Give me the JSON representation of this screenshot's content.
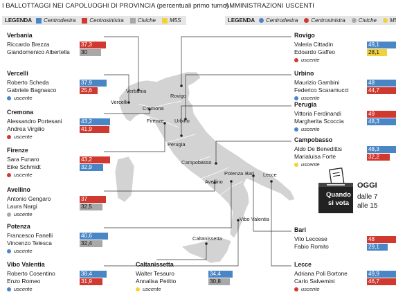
{
  "header": {
    "left_title": "I BALLOTTAGGI NEI CAPOLUOGHI DI PROVINCIA",
    "left_subtitle": "(percentuali primo turno)",
    "right_title": "AMMINISTRAZIONI USCENTI"
  },
  "legend_left": {
    "key": "LEGENDA",
    "items": [
      "Centrodestra",
      "Centrosinistra",
      "Civiche",
      "M5S"
    ]
  },
  "legend_right": {
    "key": "LEGENDA",
    "items": [
      "Centrodestra",
      "Centrosinistra",
      "Civiche",
      "M5S"
    ]
  },
  "colors": {
    "centrodestra": "#4a86c5",
    "centrosinistra": "#d0392f",
    "civiche": "#a8a8a8",
    "m5s": "#f2d23c",
    "map": "#d3d3d3"
  },
  "status_word": "uscente",
  "map_labels": [
    "Verbania",
    "Vercelli",
    "Rovigo",
    "Cremona",
    "Firenze",
    "Urbino",
    "Perugia",
    "Campobasso",
    "Potenza",
    "Bari",
    "Lecce",
    "Avellino",
    "Vibo Valentia",
    "Caltanissetta"
  ],
  "ballot_box": {
    "line1": "Quando",
    "line2": "si vota"
  },
  "schedule": {
    "oggi": "OGGI",
    "line1": "dalle 7",
    "line2": "alle 15"
  },
  "chart_data": {
    "type": "bar",
    "xlim": [
      0,
      50
    ],
    "cities": [
      {
        "name": "Verbania",
        "candidates": [
          {
            "name": "Riccardo Brezza",
            "value": 37.3,
            "party": "centrosinistra"
          },
          {
            "name": "Giandomenico Albertella",
            "value": 30,
            "party": "civiche"
          }
        ],
        "outgoing": null
      },
      {
        "name": "Vercelli",
        "candidates": [
          {
            "name": "Roberto Scheda",
            "value": 37.9,
            "party": "centrodestra"
          },
          {
            "name": "Gabriele Bagnasco",
            "value": 25.6,
            "party": "centrosinistra"
          }
        ],
        "outgoing": "centrodestra"
      },
      {
        "name": "Cremona",
        "candidates": [
          {
            "name": "Alessandro Portesani",
            "value": 43.2,
            "party": "centrodestra"
          },
          {
            "name": "Andrea Virgilio",
            "value": 41.9,
            "party": "centrosinistra"
          }
        ],
        "outgoing": "centrosinistra"
      },
      {
        "name": "Firenze",
        "candidates": [
          {
            "name": "Sara Funaro",
            "value": 43.2,
            "party": "centrosinistra"
          },
          {
            "name": "Eike Schmidt",
            "value": 32.9,
            "party": "centrodestra"
          }
        ],
        "outgoing": "centrosinistra"
      },
      {
        "name": "Avellino",
        "candidates": [
          {
            "name": "Antonio Gengaro",
            "value": 37,
            "party": "centrosinistra"
          },
          {
            "name": "Laura Nargi",
            "value": 32.5,
            "party": "civiche"
          }
        ],
        "outgoing": "civiche"
      },
      {
        "name": "Potenza",
        "candidates": [
          {
            "name": "Francesco Fanelli",
            "value": 40.6,
            "party": "centrodestra"
          },
          {
            "name": "Vincenzo Telesca",
            "value": 32.4,
            "party": "civiche"
          }
        ],
        "outgoing": "centrodestra"
      },
      {
        "name": "Vibo Valentia",
        "candidates": [
          {
            "name": "Roberto Cosentino",
            "value": 38.4,
            "party": "centrodestra"
          },
          {
            "name": "Enzo Romeo",
            "value": 31.9,
            "party": "centrosinistra"
          }
        ],
        "outgoing": "centrodestra"
      },
      {
        "name": "Caltanissetta",
        "candidates": [
          {
            "name": "Walter Tesauro",
            "value": 34.4,
            "party": "centrodestra"
          },
          {
            "name": "Annalisa Petitto",
            "value": 30.8,
            "party": "civiche"
          }
        ],
        "outgoing": "m5s"
      },
      {
        "name": "Rovigo",
        "candidates": [
          {
            "name": "Valeria Cittadin",
            "value": 49.1,
            "party": "centrodestra"
          },
          {
            "name": "Edoardo Gaffeo",
            "value": 28.1,
            "party": "m5s"
          }
        ],
        "outgoing": "centrosinistra"
      },
      {
        "name": "Urbino",
        "candidates": [
          {
            "name": "Maurizio Gambini",
            "value": 48,
            "party": "centrodestra"
          },
          {
            "name": "Federico Scaramucci",
            "value": 44.7,
            "party": "centrosinistra"
          }
        ],
        "outgoing": "centrodestra"
      },
      {
        "name": "Perugia",
        "candidates": [
          {
            "name": "Vittoria Ferdinandi",
            "value": 49,
            "party": "centrosinistra"
          },
          {
            "name": "Margherita Scoccia",
            "value": 48.3,
            "party": "centrodestra"
          }
        ],
        "outgoing": "centrodestra"
      },
      {
        "name": "Campobasso",
        "candidates": [
          {
            "name": "Aldo De Benedittis",
            "value": 48.3,
            "party": "centrodestra"
          },
          {
            "name": "Marialuisa Forte",
            "value": 32.2,
            "party": "centrosinistra"
          }
        ],
        "outgoing": "m5s"
      },
      {
        "name": "Bari",
        "candidates": [
          {
            "name": "Vito Leccese",
            "value": 48,
            "party": "centrosinistra"
          },
          {
            "name": "Fabio Romito",
            "value": 29.1,
            "party": "centrodestra"
          }
        ],
        "outgoing": null
      },
      {
        "name": "Lecce",
        "candidates": [
          {
            "name": "Adriana Poli Bortone",
            "value": 49.9,
            "party": "centrodestra"
          },
          {
            "name": "Carlo Salvemini",
            "value": 46.7,
            "party": "centrosinistra"
          }
        ],
        "outgoing": "centrosinistra"
      }
    ]
  }
}
